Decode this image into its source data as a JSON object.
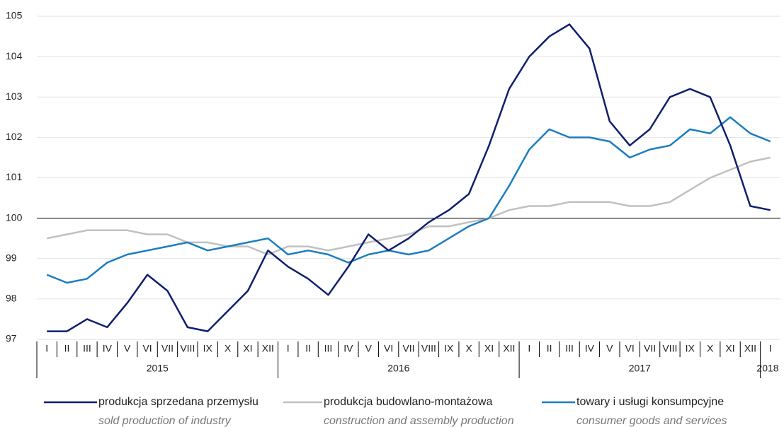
{
  "chart_data": {
    "type": "line",
    "category_groups": [
      {
        "label": "2015",
        "categories": [
          "I",
          "II",
          "III",
          "IV",
          "V",
          "VI",
          "VII",
          "VIII",
          "IX",
          "X",
          "XI",
          "XII"
        ]
      },
      {
        "label": "2016",
        "categories": [
          "I",
          "II",
          "III",
          "IV",
          "V",
          "VI",
          "VII",
          "VIII",
          "IX",
          "X",
          "XI",
          "XII"
        ]
      },
      {
        "label": "2017",
        "categories": [
          "I",
          "II",
          "III",
          "IV",
          "V",
          "VI",
          "VII",
          "VIII",
          "IX",
          "X",
          "XI",
          "XII"
        ]
      },
      {
        "label": "2018",
        "categories": [
          "I"
        ]
      }
    ],
    "ylim": [
      97,
      105
    ],
    "yticks": [
      97,
      98,
      99,
      100,
      101,
      102,
      103,
      104,
      105
    ],
    "grid": true,
    "baseline": 100,
    "series": [
      {
        "name": "produkcja sprzedana przemysłu",
        "name_en": "sold production of industry",
        "color": "#0f1f6e",
        "values": [
          97.2,
          97.2,
          97.5,
          97.3,
          97.9,
          98.6,
          98.2,
          97.3,
          97.2,
          97.7,
          98.2,
          99.2,
          98.8,
          98.5,
          98.1,
          98.8,
          99.6,
          99.2,
          99.5,
          99.9,
          100.2,
          100.6,
          101.8,
          103.2,
          104.0,
          104.5,
          104.8,
          104.2,
          102.4,
          101.8,
          102.2,
          103.0,
          103.2,
          103.0,
          101.8,
          100.3,
          100.2
        ]
      },
      {
        "name": "produkcja budowlano-montażowa",
        "name_en": "construction and assembly production",
        "color": "#c0c0c0",
        "values": [
          99.5,
          99.6,
          99.7,
          99.7,
          99.7,
          99.6,
          99.6,
          99.4,
          99.4,
          99.3,
          99.3,
          99.1,
          99.3,
          99.3,
          99.2,
          99.3,
          99.4,
          99.5,
          99.6,
          99.8,
          99.8,
          99.9,
          100.0,
          100.2,
          100.3,
          100.3,
          100.4,
          100.4,
          100.4,
          100.3,
          100.3,
          100.4,
          100.7,
          101.0,
          101.2,
          101.4,
          101.5
        ]
      },
      {
        "name": "towary i usługi konsumpcyjne",
        "name_en": "consumer goods and services",
        "color": "#1a7dc0",
        "values": [
          98.6,
          98.4,
          98.5,
          98.9,
          99.1,
          99.2,
          99.3,
          99.4,
          99.2,
          99.3,
          99.4,
          99.5,
          99.1,
          99.2,
          99.1,
          98.9,
          99.1,
          99.2,
          99.1,
          99.2,
          99.5,
          99.8,
          100.0,
          100.8,
          101.7,
          102.2,
          102.0,
          102.0,
          101.9,
          101.5,
          101.7,
          101.8,
          102.2,
          102.1,
          102.5,
          102.1,
          101.9
        ]
      }
    ]
  }
}
